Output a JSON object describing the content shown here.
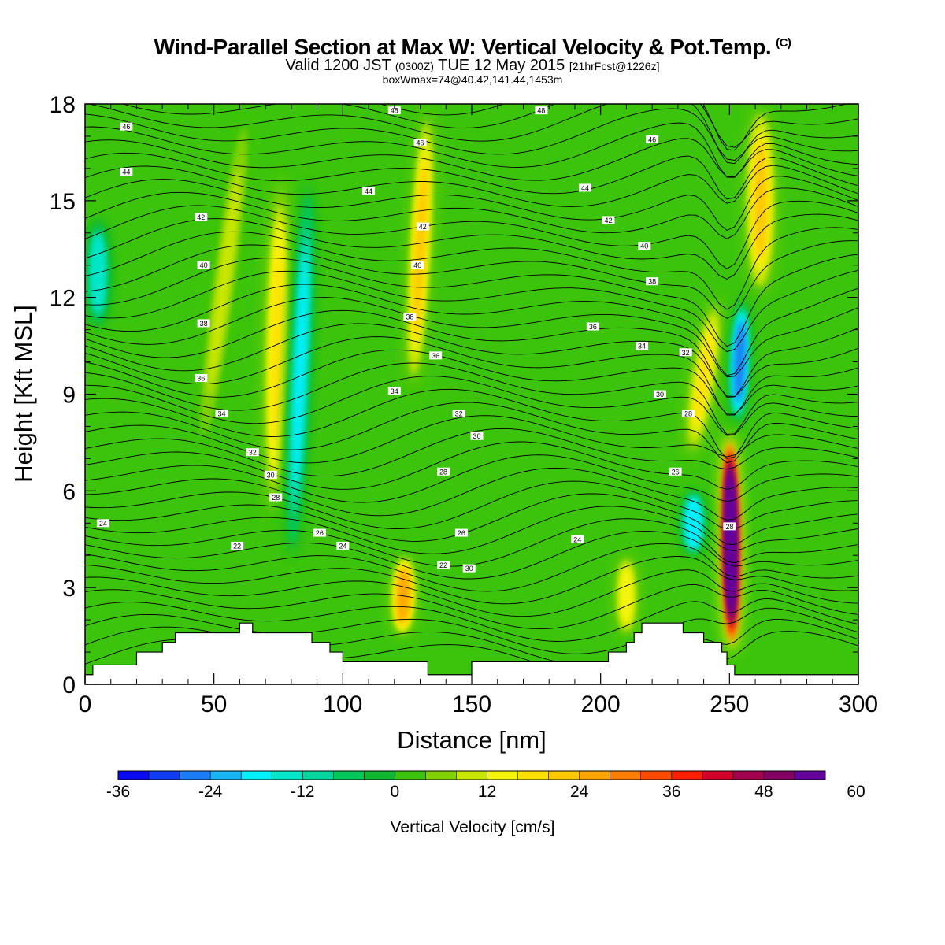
{
  "title": {
    "main": "Wind-Parallel Section at Max W: Vertical Velocity & Pot.Temp.",
    "copyright": "(C)",
    "valid_prefix": "Valid 1200 JST",
    "valid_z": "(0300Z)",
    "valid_date": "TUE 12 May 2015",
    "valid_fcst": "[21hrFcst@1226z]",
    "box": "boxWmax=74@40.42,141.44,1453m"
  },
  "colorbar": {
    "label": "Vertical Velocity [cm/s]",
    "tick_labels": [
      "-36",
      "-24",
      "-12",
      "0",
      "12",
      "24",
      "36",
      "48",
      "60"
    ],
    "colors": [
      "#0a0af2",
      "#0f3cf5",
      "#1b7ef8",
      "#17b5f5",
      "#00f0ff",
      "#00e6c8",
      "#00d7a0",
      "#00c85a",
      "#10b830",
      "#3cc40c",
      "#82d200",
      "#c8e600",
      "#f5f50a",
      "#ffe100",
      "#ffc800",
      "#ffa500",
      "#ff7d00",
      "#ff4b00",
      "#ff1e00",
      "#d2002d",
      "#a50050",
      "#820064",
      "#64009b"
    ]
  },
  "chart_data": {
    "type": "heatmap",
    "title": "Wind-Parallel Section at Max W: Vertical Velocity & Pot.Temp.",
    "xlabel": "Distance [nm]",
    "ylabel": "Height [Kft MSL]",
    "xlim": [
      0,
      300
    ],
    "ylim": [
      0,
      18
    ],
    "x_ticks": [
      0,
      50,
      100,
      150,
      200,
      250,
      300
    ],
    "y_ticks": [
      0,
      3,
      6,
      9,
      12,
      15,
      18
    ],
    "colorscale_min": -36,
    "colorscale_max": 64,
    "colorscale_step": 4,
    "updraft_bands": [
      {
        "x_top": 63,
        "x_bottom": 45,
        "y_bottom": 7,
        "y_top": 18,
        "w": 10,
        "width": 4
      },
      {
        "x_top": 76,
        "x_bottom": 73,
        "y_bottom": 5,
        "y_top": 16,
        "w": 18,
        "width": 5
      },
      {
        "x_top": 133,
        "x_bottom": 127,
        "y_bottom": 9,
        "y_top": 18,
        "w": 20,
        "width": 4
      },
      {
        "x_top": 124,
        "x_bottom": 123,
        "y_bottom": 1.5,
        "y_top": 4,
        "w": 24,
        "width": 5
      },
      {
        "x_top": 210,
        "x_bottom": 210,
        "y_bottom": 1.5,
        "y_top": 4,
        "w": 14,
        "width": 4
      },
      {
        "x_top": 245,
        "x_bottom": 235,
        "y_bottom": 7,
        "y_top": 12,
        "w": 16,
        "width": 5
      },
      {
        "x_top": 262,
        "x_bottom": 262,
        "y_bottom": 12,
        "y_top": 18,
        "w": 20,
        "width": 6
      },
      {
        "x_top": 250,
        "x_bottom": 251,
        "y_bottom": 0.8,
        "y_top": 8,
        "w": 74,
        "width": 4
      }
    ],
    "downdraft_bands": [
      {
        "x_top": 87,
        "x_bottom": 80,
        "y_bottom": 3.5,
        "y_top": 16,
        "w": -18,
        "width": 4
      },
      {
        "x_top": 255,
        "x_bottom": 253,
        "y_bottom": 8,
        "y_top": 12,
        "w": -28,
        "width": 4
      },
      {
        "x_top": 236,
        "x_bottom": 236,
        "y_bottom": 4,
        "y_top": 6,
        "w": -20,
        "width": 5
      },
      {
        "x_top": 5,
        "x_bottom": 5,
        "y_bottom": 11,
        "y_top": 14.5,
        "w": -16,
        "width": 5
      }
    ],
    "theta_contour_labels": [
      {
        "x": 7,
        "y": 5.0,
        "text": "24"
      },
      {
        "x": 16,
        "y": 17.3,
        "text": "46"
      },
      {
        "x": 16,
        "y": 15.9,
        "text": "44"
      },
      {
        "x": 45,
        "y": 14.5,
        "text": "42"
      },
      {
        "x": 46,
        "y": 13.0,
        "text": "40"
      },
      {
        "x": 46,
        "y": 11.2,
        "text": "38"
      },
      {
        "x": 45,
        "y": 9.5,
        "text": "36"
      },
      {
        "x": 53,
        "y": 8.4,
        "text": "34"
      },
      {
        "x": 65,
        "y": 7.2,
        "text": "32"
      },
      {
        "x": 72,
        "y": 6.5,
        "text": "30"
      },
      {
        "x": 74,
        "y": 5.8,
        "text": "28"
      },
      {
        "x": 59,
        "y": 4.3,
        "text": "22"
      },
      {
        "x": 91,
        "y": 4.7,
        "text": "26"
      },
      {
        "x": 100,
        "y": 4.3,
        "text": "24"
      },
      {
        "x": 120,
        "y": 17.8,
        "text": "48"
      },
      {
        "x": 130,
        "y": 16.8,
        "text": "46"
      },
      {
        "x": 110,
        "y": 15.3,
        "text": "44"
      },
      {
        "x": 131,
        "y": 14.2,
        "text": "42"
      },
      {
        "x": 129,
        "y": 13.0,
        "text": "40"
      },
      {
        "x": 126,
        "y": 11.4,
        "text": "38"
      },
      {
        "x": 136,
        "y": 10.2,
        "text": "36"
      },
      {
        "x": 120,
        "y": 9.1,
        "text": "34"
      },
      {
        "x": 145,
        "y": 8.4,
        "text": "32"
      },
      {
        "x": 152,
        "y": 7.7,
        "text": "30"
      },
      {
        "x": 139,
        "y": 6.6,
        "text": "28"
      },
      {
        "x": 146,
        "y": 4.7,
        "text": "26"
      },
      {
        "x": 139,
        "y": 3.7,
        "text": "22"
      },
      {
        "x": 149,
        "y": 3.6,
        "text": "30"
      },
      {
        "x": 177,
        "y": 17.8,
        "text": "48"
      },
      {
        "x": 220,
        "y": 16.9,
        "text": "46"
      },
      {
        "x": 194,
        "y": 15.4,
        "text": "44"
      },
      {
        "x": 203,
        "y": 14.4,
        "text": "42"
      },
      {
        "x": 217,
        "y": 13.6,
        "text": "40"
      },
      {
        "x": 220,
        "y": 12.5,
        "text": "38"
      },
      {
        "x": 197,
        "y": 11.1,
        "text": "36"
      },
      {
        "x": 216,
        "y": 10.5,
        "text": "34"
      },
      {
        "x": 223,
        "y": 9.0,
        "text": "30"
      },
      {
        "x": 233,
        "y": 10.3,
        "text": "32"
      },
      {
        "x": 234,
        "y": 8.4,
        "text": "28"
      },
      {
        "x": 229,
        "y": 6.6,
        "text": "26"
      },
      {
        "x": 191,
        "y": 4.5,
        "text": "24"
      },
      {
        "x": 250,
        "y": 4.9,
        "text": "28"
      }
    ],
    "terrain_profile": [
      [
        0,
        0.3
      ],
      [
        3,
        0.6
      ],
      [
        20,
        1.0
      ],
      [
        30,
        1.3
      ],
      [
        35,
        1.6
      ],
      [
        60,
        1.9
      ],
      [
        65,
        1.6
      ],
      [
        88,
        1.3
      ],
      [
        95,
        1.0
      ],
      [
        100,
        0.7
      ],
      [
        133,
        0.3
      ],
      [
        150,
        0.7
      ],
      [
        203,
        1.0
      ],
      [
        210,
        1.3
      ],
      [
        213,
        1.6
      ],
      [
        216,
        1.9
      ],
      [
        232,
        1.6
      ],
      [
        240,
        1.3
      ],
      [
        247,
        1.0
      ],
      [
        249,
        0.6
      ],
      [
        252,
        0.3
      ],
      [
        257,
        0.3
      ],
      [
        300,
        0.3
      ]
    ]
  }
}
